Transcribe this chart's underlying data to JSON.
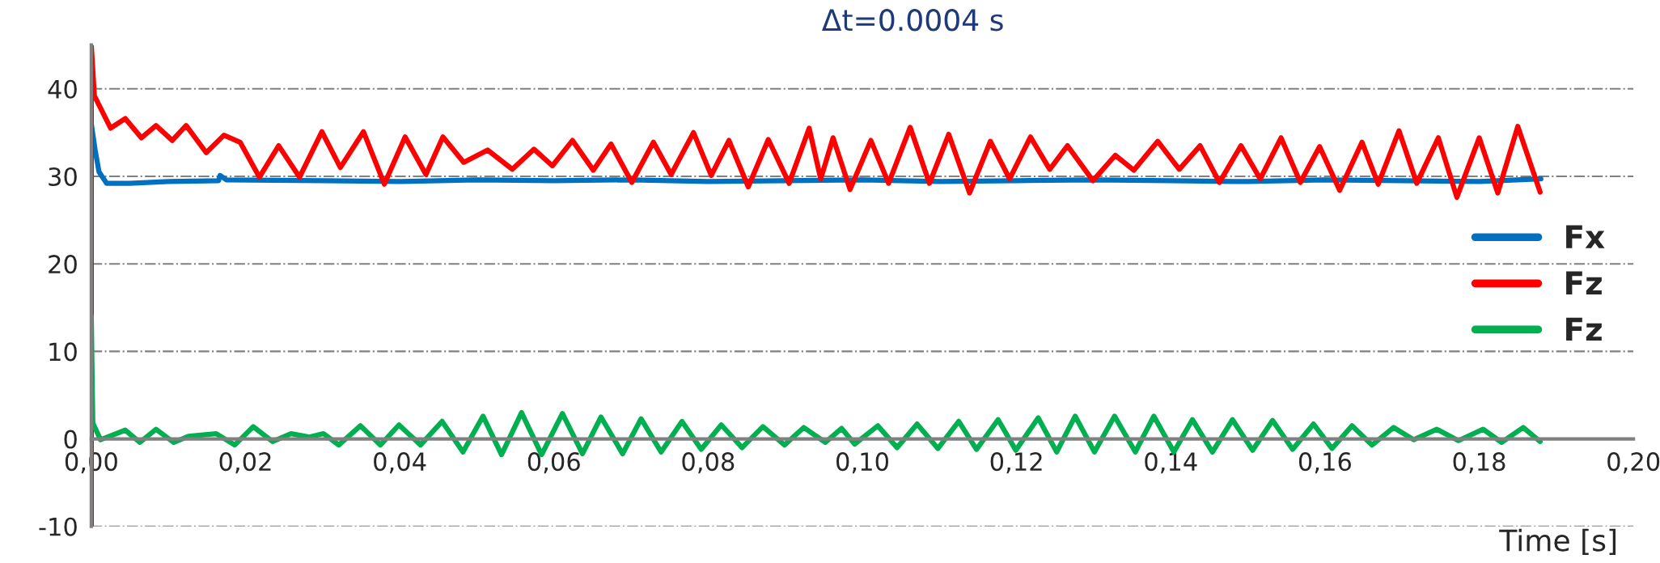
{
  "chart_data": {
    "type": "line",
    "title": "Δt=0.0004 s",
    "xlabel": "Time [s]",
    "xlim": [
      0,
      0.2
    ],
    "ylim": [
      -10,
      45
    ],
    "xticks": [
      {
        "value": 0,
        "label": "0,00"
      },
      {
        "value": 0.02,
        "label": "0,02"
      },
      {
        "value": 0.04,
        "label": "0,04"
      },
      {
        "value": 0.06,
        "label": "0,06"
      },
      {
        "value": 0.08,
        "label": "0,08"
      },
      {
        "value": 0.1,
        "label": "0,10"
      },
      {
        "value": 0.12,
        "label": "0,12"
      },
      {
        "value": 0.14,
        "label": "0,14"
      },
      {
        "value": 0.16,
        "label": "0,16"
      },
      {
        "value": 0.18,
        "label": "0,18"
      },
      {
        "value": 0.2,
        "label": "0,20"
      }
    ],
    "yticks": [
      -10,
      0,
      10,
      20,
      30,
      40
    ],
    "grid": "y",
    "legend": "right",
    "series": [
      {
        "name": "Fx",
        "color": "#0070c0",
        "x": [
          0,
          0.0005,
          0.001,
          0.002,
          0.005,
          0.01,
          0.0165,
          0.0167,
          0.0175,
          0.03,
          0.04,
          0.05,
          0.06,
          0.07,
          0.08,
          0.09,
          0.1,
          0.11,
          0.12,
          0.13,
          0.14,
          0.15,
          0.16,
          0.17,
          0.18,
          0.188
        ],
        "values": [
          36,
          33,
          30.5,
          29.2,
          29.2,
          29.4,
          29.5,
          30.1,
          29.6,
          29.5,
          29.4,
          29.6,
          29.5,
          29.6,
          29.4,
          29.5,
          29.6,
          29.4,
          29.5,
          29.6,
          29.5,
          29.4,
          29.6,
          29.5,
          29.4,
          29.7
        ]
      },
      {
        "name": "Fz",
        "color": "#ff0000",
        "x": [
          0,
          0,
          0.0004,
          0.0025,
          0.0044,
          0.0065,
          0.0084,
          0.0105,
          0.0123,
          0.0149,
          0.0172,
          0.0193,
          0.0218,
          0.0243,
          0.027,
          0.0299,
          0.0323,
          0.0353,
          0.038,
          0.0407,
          0.0434,
          0.0456,
          0.0483,
          0.0514,
          0.0546,
          0.0574,
          0.0598,
          0.0624,
          0.0651,
          0.0674,
          0.0701,
          0.0729,
          0.0752,
          0.0781,
          0.0804,
          0.0827,
          0.0852,
          0.0878,
          0.0905,
          0.0931,
          0.0946,
          0.0962,
          0.0984,
          0.1011,
          0.1034,
          0.1062,
          0.1087,
          0.1112,
          0.1139,
          0.1166,
          0.1191,
          0.1218,
          0.1243,
          0.1266,
          0.1299,
          0.1328,
          0.1352,
          0.1383,
          0.1411,
          0.1438,
          0.1463,
          0.1491,
          0.1516,
          0.1543,
          0.1568,
          0.1593,
          0.1619,
          0.1648,
          0.1669,
          0.1696,
          0.1719,
          0.1747,
          0.1771,
          0.18,
          0.1824,
          0.185,
          0.1879
        ],
        "values": [
          -10,
          45,
          39.2,
          35.5,
          36.6,
          34.4,
          35.8,
          34.1,
          35.8,
          32.7,
          34.7,
          33.9,
          29.9,
          33.5,
          29.9,
          35.1,
          31.0,
          35.1,
          29.1,
          34.5,
          30.2,
          34.5,
          31.6,
          33.0,
          30.8,
          33.1,
          31.2,
          34.1,
          30.7,
          33.7,
          29.3,
          33.9,
          30.2,
          35.0,
          30.1,
          34.1,
          28.8,
          34.2,
          29.2,
          35.5,
          29.7,
          34.4,
          28.5,
          34.1,
          29.2,
          35.6,
          29.2,
          34.8,
          28.1,
          34.0,
          29.7,
          34.5,
          30.8,
          33.5,
          29.5,
          32.4,
          30.7,
          34.0,
          30.8,
          33.5,
          29.3,
          33.5,
          29.7,
          34.4,
          29.3,
          33.4,
          28.4,
          33.9,
          29.1,
          35.2,
          29.2,
          34.4,
          27.6,
          34.4,
          28.1,
          35.7,
          28.2
        ]
      },
      {
        "name": "Fz",
        "color": "#00b050",
        "x": [
          0,
          0.0002,
          0.0012,
          0.0044,
          0.0063,
          0.0084,
          0.0107,
          0.0126,
          0.0162,
          0.0186,
          0.021,
          0.0235,
          0.0259,
          0.0283,
          0.0301,
          0.0321,
          0.0349,
          0.0375,
          0.0399,
          0.0427,
          0.0455,
          0.0482,
          0.0508,
          0.0532,
          0.0558,
          0.0584,
          0.0611,
          0.0637,
          0.0661,
          0.0689,
          0.0713,
          0.0739,
          0.0766,
          0.0791,
          0.0817,
          0.0844,
          0.0871,
          0.0899,
          0.0924,
          0.0952,
          0.0973,
          0.099,
          0.102,
          0.1045,
          0.1071,
          0.1098,
          0.1125,
          0.1148,
          0.1176,
          0.1199,
          0.1228,
          0.1252,
          0.1276,
          0.1301,
          0.1327,
          0.1354,
          0.1378,
          0.1404,
          0.1428,
          0.1454,
          0.148,
          0.1506,
          0.1532,
          0.1558,
          0.1585,
          0.1609,
          0.1635,
          0.1661,
          0.1689,
          0.1715,
          0.1745,
          0.1773,
          0.1805,
          0.1829,
          0.1857,
          0.1879
        ],
        "values": [
          14,
          1.8,
          -0.1,
          1.0,
          -0.4,
          1.1,
          -0.4,
          0.3,
          0.6,
          -0.7,
          1.4,
          -0.3,
          0.6,
          0.2,
          0.6,
          -0.7,
          1.5,
          -0.7,
          1.6,
          -0.7,
          2.0,
          -1.5,
          2.6,
          -1.8,
          3.0,
          -1.8,
          2.9,
          -1.7,
          2.5,
          -1.7,
          2.3,
          -1.5,
          2.0,
          -1.2,
          1.6,
          -1.0,
          1.4,
          -0.7,
          1.3,
          -0.4,
          1.2,
          -0.6,
          1.5,
          -1.0,
          1.7,
          -1.1,
          2.0,
          -1.2,
          2.2,
          -1.3,
          2.4,
          -1.5,
          2.6,
          -1.5,
          2.6,
          -1.5,
          2.6,
          -1.5,
          2.2,
          -1.5,
          2.2,
          -1.3,
          2.1,
          -1.2,
          1.7,
          -1.1,
          1.5,
          -0.7,
          1.3,
          -0.1,
          1.1,
          -0.2,
          1.1,
          -0.4,
          1.3,
          -0.3
        ]
      }
    ]
  }
}
